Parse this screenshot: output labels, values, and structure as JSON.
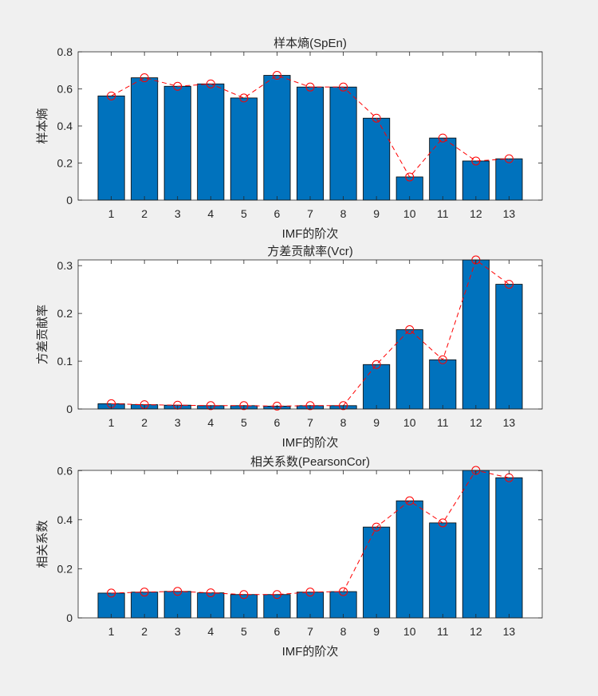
{
  "figure": {
    "background": "#f0f0f0",
    "axes_background": "#ffffff",
    "bar_color": "#0072bd",
    "line_color": "#ff0000"
  },
  "chart_data": [
    {
      "type": "bar",
      "title": "样本熵(SpEn)",
      "xlabel": "IMF的阶次",
      "ylabel": "样本熵",
      "categories": [
        "1",
        "2",
        "3",
        "4",
        "5",
        "6",
        "7",
        "8",
        "9",
        "10",
        "11",
        "12",
        "13"
      ],
      "series": [
        {
          "type": "bar",
          "values": [
            0.562,
            0.66,
            0.614,
            0.627,
            0.551,
            0.673,
            0.61,
            0.61,
            0.442,
            0.125,
            0.335,
            0.211,
            0.223
          ]
        },
        {
          "type": "line",
          "style": "dashed-circle",
          "values": [
            0.562,
            0.66,
            0.614,
            0.627,
            0.551,
            0.673,
            0.61,
            0.61,
            0.442,
            0.125,
            0.335,
            0.211,
            0.223
          ]
        }
      ],
      "ylim": [
        0,
        0.8
      ],
      "yticks": [
        "0",
        "0.2",
        "0.4",
        "0.6",
        "0.8"
      ],
      "ytick_values": [
        0,
        0.2,
        0.4,
        0.6,
        0.8
      ],
      "grid": false
    },
    {
      "type": "bar",
      "title": "方差贡献率(Vcr)",
      "xlabel": "IMF的阶次",
      "ylabel": "方差贡献率",
      "categories": [
        "1",
        "2",
        "3",
        "4",
        "5",
        "6",
        "7",
        "8",
        "9",
        "10",
        "11",
        "12",
        "13"
      ],
      "series": [
        {
          "type": "bar",
          "values": [
            0.011,
            0.009,
            0.008,
            0.007,
            0.007,
            0.006,
            0.007,
            0.007,
            0.093,
            0.166,
            0.103,
            0.312,
            0.261
          ]
        },
        {
          "type": "line",
          "style": "dashed-circle",
          "values": [
            0.011,
            0.009,
            0.008,
            0.007,
            0.007,
            0.006,
            0.007,
            0.007,
            0.093,
            0.166,
            0.103,
            0.312,
            0.261
          ]
        }
      ],
      "ylim": [
        0,
        0.312
      ],
      "yticks": [
        "0",
        "0.1",
        "0.2",
        "0.3"
      ],
      "ytick_values": [
        0,
        0.1,
        0.2,
        0.3
      ],
      "grid": false
    },
    {
      "type": "bar",
      "title": "相关系数(PearsonCor)",
      "xlabel": "IMF的阶次",
      "ylabel": "相关系数",
      "categories": [
        "1",
        "2",
        "3",
        "4",
        "5",
        "6",
        "7",
        "8",
        "9",
        "10",
        "11",
        "12",
        "13"
      ],
      "series": [
        {
          "type": "bar",
          "values": [
            0.101,
            0.105,
            0.108,
            0.102,
            0.095,
            0.095,
            0.105,
            0.107,
            0.37,
            0.477,
            0.387,
            0.601,
            0.571
          ]
        },
        {
          "type": "line",
          "style": "dashed-circle",
          "values": [
            0.101,
            0.105,
            0.108,
            0.102,
            0.095,
            0.095,
            0.105,
            0.107,
            0.37,
            0.477,
            0.387,
            0.601,
            0.571
          ]
        }
      ],
      "ylim": [
        0,
        0.601
      ],
      "yticks": [
        "0",
        "0.2",
        "0.4",
        "0.6"
      ],
      "ytick_values": [
        0,
        0.2,
        0.4,
        0.6
      ],
      "grid": false
    }
  ]
}
